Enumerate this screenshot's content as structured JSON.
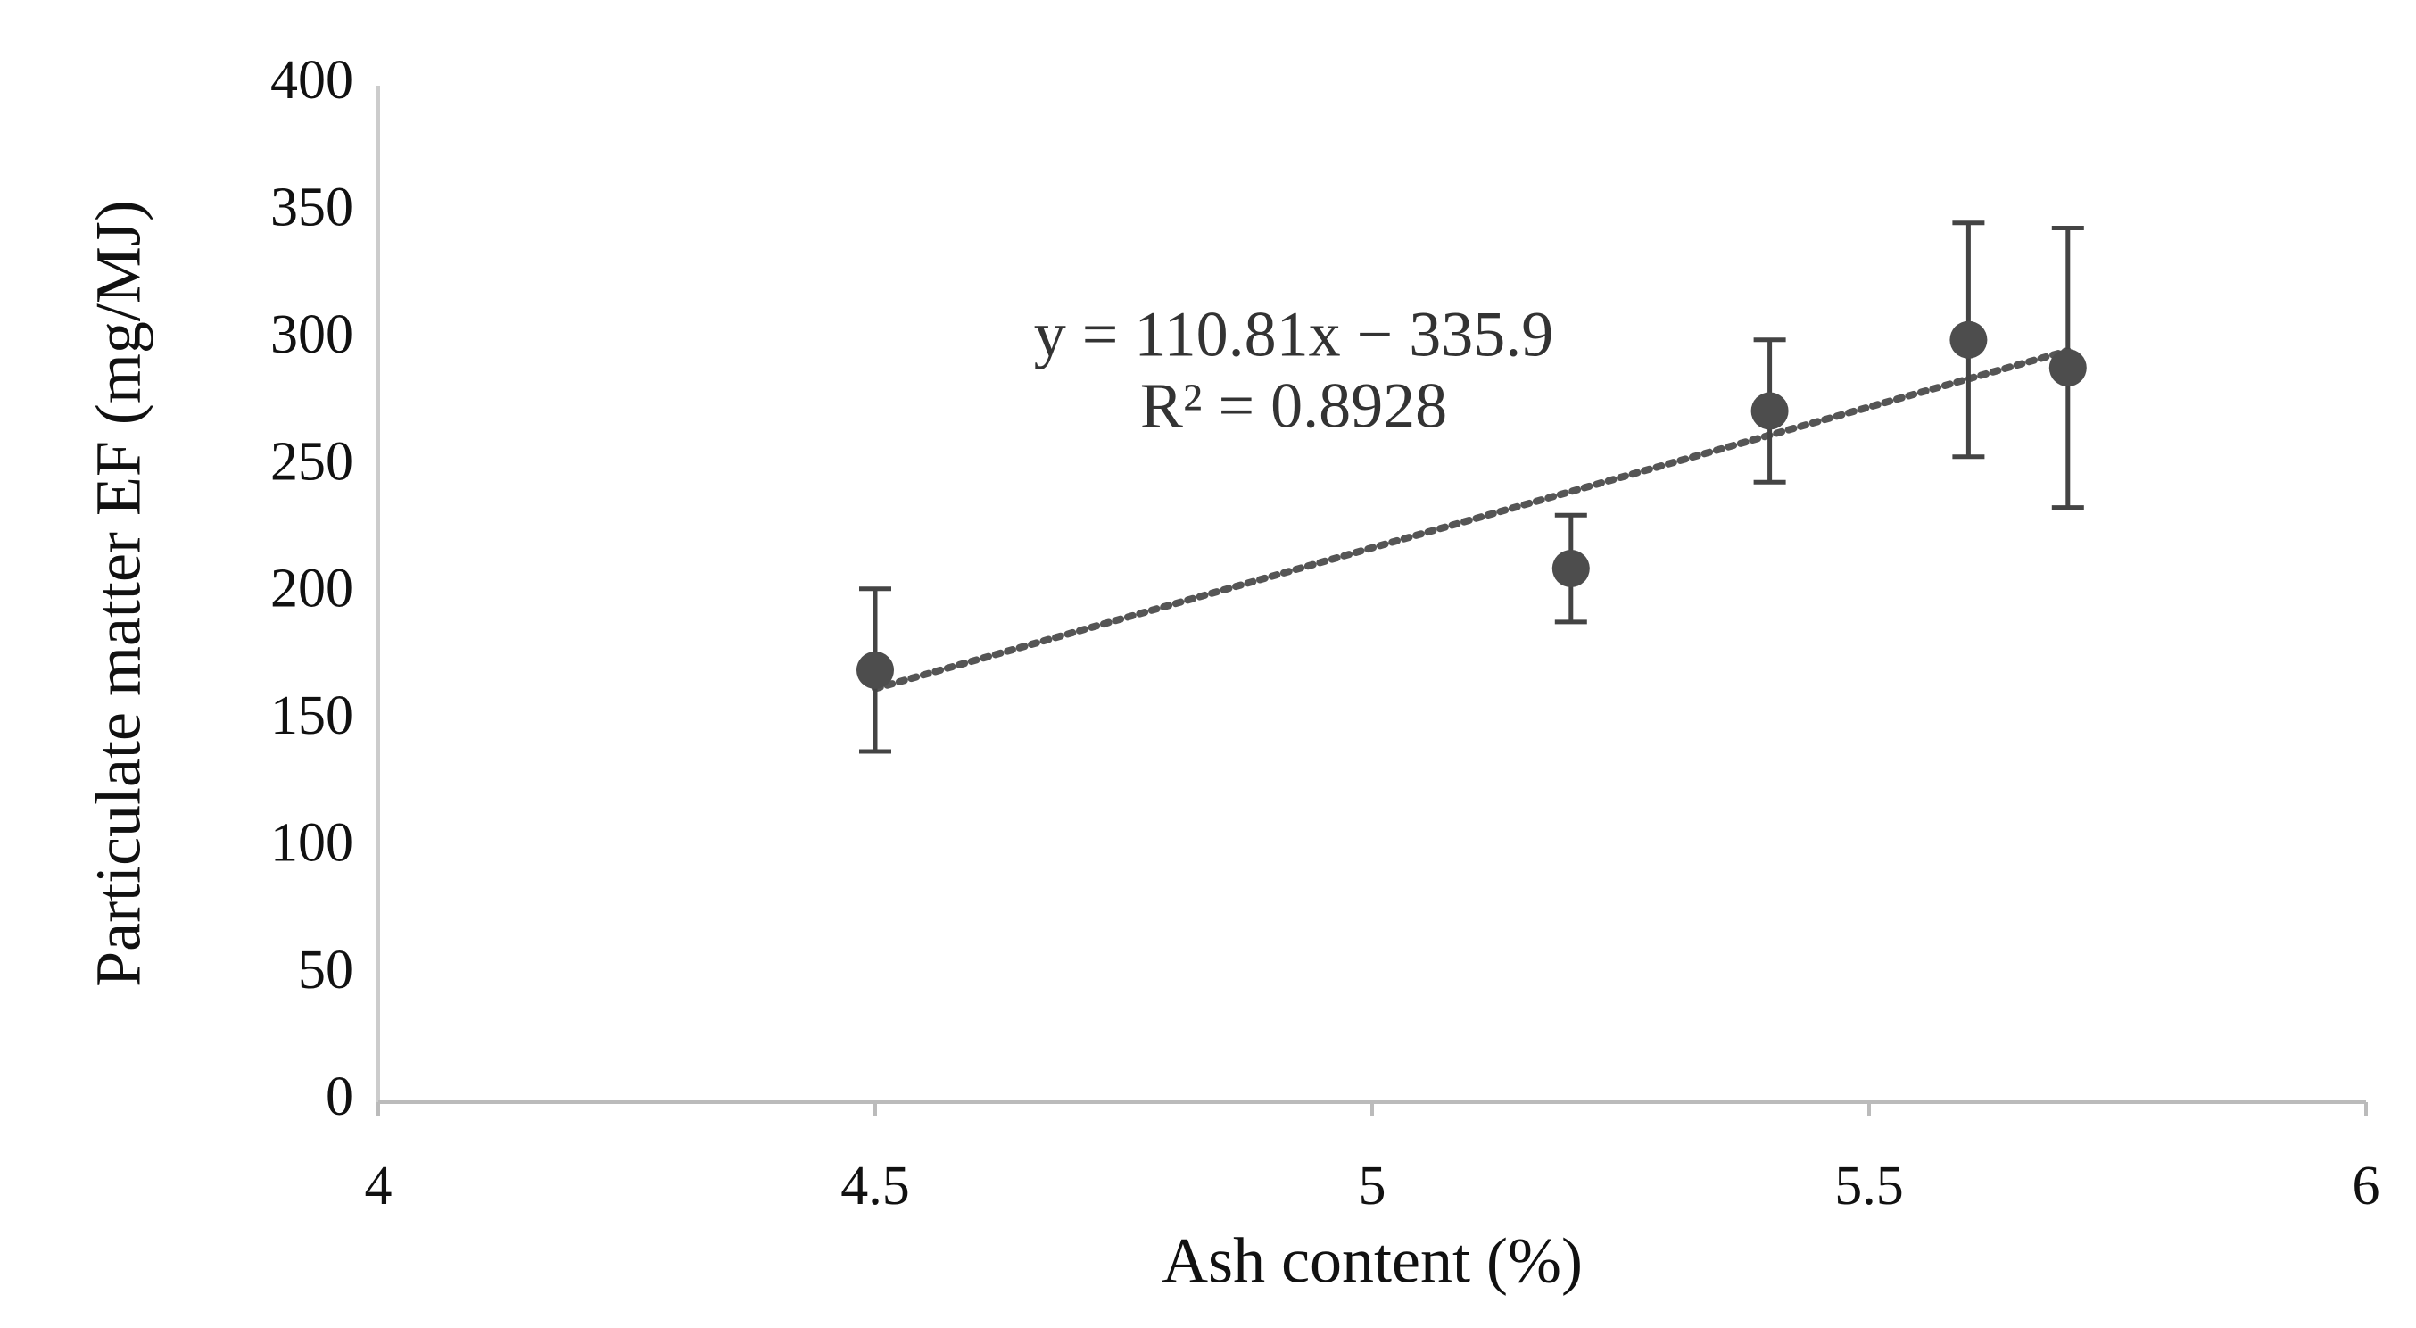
{
  "chart_data": {
    "type": "scatter",
    "x_label": "Ash content (%)",
    "y_label": "Particulate matter EF (mg/MJ)",
    "x": [
      4.5,
      5.2,
      5.4,
      5.6,
      5.7
    ],
    "values": [
      170,
      210,
      272,
      300,
      289
    ],
    "errors": [
      32,
      21,
      28,
      46,
      55
    ],
    "color": "#4d4d4d",
    "trendline": {
      "slope": 110.81,
      "intercept": -335.9,
      "color": "#555555",
      "equation": "y = 110.81x − 335.9",
      "r2": "R² = 0.8928"
    },
    "xlim": [
      4,
      6
    ],
    "xticks": [
      4,
      4.5,
      5,
      5.5,
      6
    ],
    "ylim": [
      0,
      400
    ],
    "yticks": [
      0,
      50,
      100,
      150,
      200,
      250,
      300,
      350,
      400
    ],
    "grid": false
  }
}
